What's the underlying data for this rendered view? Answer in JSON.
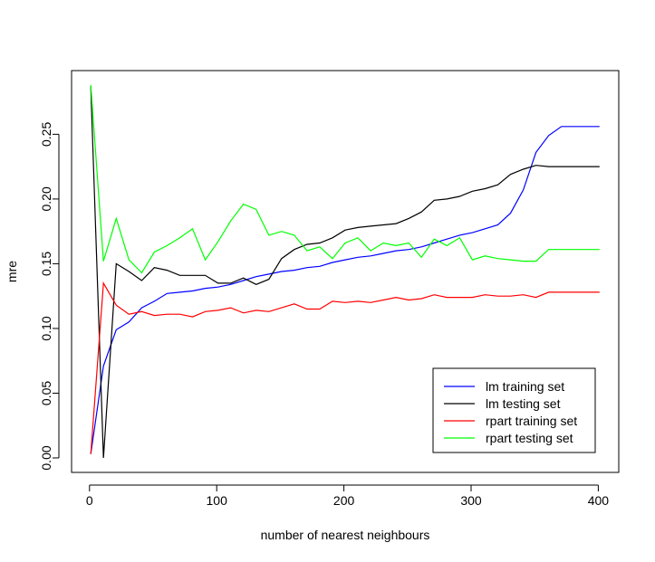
{
  "chart_data": {
    "type": "line",
    "title": "",
    "xlabel": "number of nearest neighbours",
    "ylabel": "mre",
    "xlim": [
      -14.1,
      416.1
    ],
    "ylim": [
      -0.0112,
      0.2992
    ],
    "xticks": [
      0,
      100,
      200,
      300,
      400
    ],
    "xtick_labels": [
      "0",
      "100",
      "200",
      "300",
      "400"
    ],
    "yticks": [
      0.0,
      0.05,
      0.1,
      0.15,
      0.2,
      0.25
    ],
    "ytick_labels": [
      "0.00",
      "0.05",
      "0.10",
      "0.15",
      "0.20",
      "0.25"
    ],
    "grid": false,
    "legend_position": "bottom-right",
    "series": [
      {
        "name": "lm training set",
        "color": "#0000ff",
        "x": [
          1,
          11,
          21,
          31,
          41,
          51,
          61,
          71,
          81,
          91,
          101,
          111,
          121,
          131,
          141,
          151,
          161,
          171,
          181,
          191,
          201,
          211,
          221,
          231,
          241,
          251,
          261,
          271,
          281,
          291,
          301,
          311,
          321,
          331,
          341,
          351,
          361,
          371,
          381,
          391,
          401
        ],
        "y": [
          0.003,
          0.071,
          0.099,
          0.105,
          0.116,
          0.121,
          0.127,
          0.128,
          0.129,
          0.131,
          0.132,
          0.134,
          0.137,
          0.14,
          0.142,
          0.144,
          0.145,
          0.147,
          0.148,
          0.151,
          0.153,
          0.155,
          0.156,
          0.158,
          0.16,
          0.161,
          0.163,
          0.166,
          0.169,
          0.172,
          0.174,
          0.177,
          0.18,
          0.189,
          0.207,
          0.236,
          0.249,
          0.256,
          0.256,
          0.256,
          0.256
        ]
      },
      {
        "name": "lm testing set",
        "color": "#000000",
        "x": [
          1,
          11,
          21,
          31,
          41,
          51,
          61,
          71,
          81,
          91,
          101,
          111,
          121,
          131,
          141,
          151,
          161,
          171,
          181,
          191,
          201,
          211,
          221,
          231,
          241,
          251,
          261,
          271,
          281,
          291,
          301,
          311,
          321,
          331,
          341,
          351,
          361,
          371,
          381,
          391,
          401
        ],
        "y": [
          0.287,
          0.0,
          0.15,
          0.144,
          0.137,
          0.147,
          0.145,
          0.141,
          0.141,
          0.141,
          0.135,
          0.135,
          0.139,
          0.134,
          0.138,
          0.154,
          0.161,
          0.165,
          0.166,
          0.17,
          0.176,
          0.178,
          0.179,
          0.18,
          0.181,
          0.185,
          0.19,
          0.199,
          0.2,
          0.202,
          0.206,
          0.208,
          0.211,
          0.219,
          0.223,
          0.226,
          0.225,
          0.225,
          0.225,
          0.225,
          0.225
        ]
      },
      {
        "name": "rpart training set",
        "color": "#ff0000",
        "x": [
          1,
          11,
          21,
          31,
          41,
          51,
          61,
          71,
          81,
          91,
          101,
          111,
          121,
          131,
          141,
          151,
          161,
          171,
          181,
          191,
          201,
          211,
          221,
          231,
          241,
          251,
          261,
          271,
          281,
          291,
          301,
          311,
          321,
          331,
          341,
          351,
          361,
          371,
          381,
          391,
          401
        ],
        "y": [
          0.003,
          0.135,
          0.118,
          0.111,
          0.113,
          0.11,
          0.111,
          0.111,
          0.109,
          0.113,
          0.114,
          0.116,
          0.112,
          0.114,
          0.113,
          0.116,
          0.119,
          0.115,
          0.115,
          0.121,
          0.12,
          0.121,
          0.12,
          0.122,
          0.124,
          0.122,
          0.123,
          0.126,
          0.124,
          0.124,
          0.124,
          0.126,
          0.125,
          0.125,
          0.126,
          0.124,
          0.128,
          0.128,
          0.128,
          0.128,
          0.128
        ]
      },
      {
        "name": "rpart testing set",
        "color": "#00ff00",
        "x": [
          1,
          11,
          21,
          31,
          41,
          51,
          61,
          71,
          81,
          91,
          101,
          111,
          121,
          131,
          141,
          151,
          161,
          171,
          181,
          191,
          201,
          211,
          221,
          231,
          241,
          251,
          261,
          271,
          281,
          291,
          301,
          311,
          321,
          331,
          341,
          351,
          361,
          371,
          381,
          391,
          401
        ],
        "y": [
          0.288,
          0.152,
          0.185,
          0.153,
          0.143,
          0.159,
          0.164,
          0.17,
          0.177,
          0.153,
          0.167,
          0.183,
          0.196,
          0.192,
          0.172,
          0.175,
          0.172,
          0.16,
          0.163,
          0.154,
          0.166,
          0.17,
          0.16,
          0.166,
          0.164,
          0.166,
          0.155,
          0.169,
          0.164,
          0.17,
          0.153,
          0.156,
          0.154,
          0.153,
          0.152,
          0.152,
          0.161,
          0.161,
          0.161,
          0.161,
          0.161
        ]
      }
    ]
  }
}
